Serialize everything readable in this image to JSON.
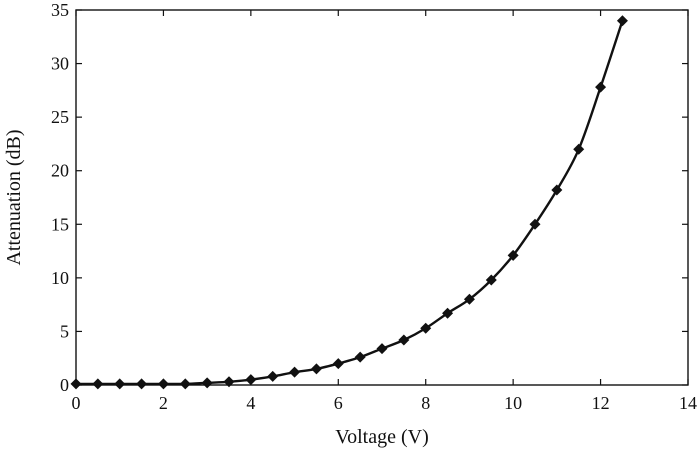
{
  "chart_data": {
    "type": "line",
    "title": "",
    "xlabel": "Voltage (V)",
    "ylabel": "Attenuation (dB)",
    "xlim": [
      0,
      14
    ],
    "ylim": [
      0,
      35
    ],
    "xticks": [
      0,
      2,
      4,
      6,
      8,
      10,
      12,
      14
    ],
    "yticks": [
      0,
      5,
      10,
      15,
      20,
      25,
      30,
      35
    ],
    "grid": false,
    "marker": "diamond",
    "series": [
      {
        "x": [
          0,
          0.5,
          1,
          1.5,
          2,
          2.5,
          3,
          3.5,
          4,
          4.5,
          5,
          5.5,
          6,
          6.5,
          7,
          7.5,
          8,
          8.5,
          9,
          9.5,
          10,
          10.5,
          11,
          11.5,
          12,
          12.5
        ],
        "y": [
          0.1,
          0.1,
          0.1,
          0.1,
          0.1,
          0.1,
          0.2,
          0.3,
          0.5,
          0.8,
          1.2,
          1.5,
          2.0,
          2.6,
          3.4,
          4.2,
          5.3,
          6.7,
          8.0,
          9.8,
          12.1,
          15.0,
          18.2,
          22.0,
          27.8,
          34.0
        ],
        "color": "#111111"
      }
    ]
  }
}
